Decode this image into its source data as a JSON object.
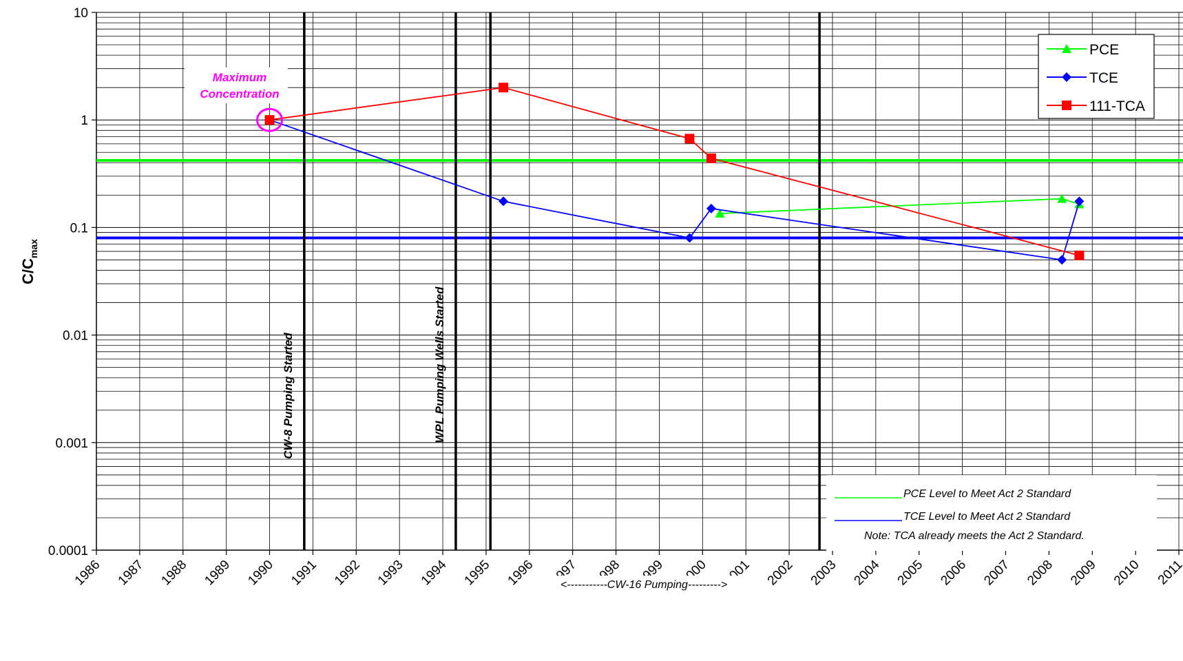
{
  "chart_data": {
    "type": "line",
    "ylabel_main": "C/C",
    "ylabel_sub": "max",
    "y_scale": "log",
    "ylim": [
      0.0001,
      10
    ],
    "xlim": [
      1986,
      2011
    ],
    "y_ticks": [
      "10",
      "1",
      "0.1",
      "0.01",
      "0.001",
      "0.0001"
    ],
    "x_ticks": [
      "1986",
      "1987",
      "1988",
      "1989",
      "1990",
      "1991",
      "1992",
      "1993",
      "1994",
      "1995",
      "1996",
      "1997",
      "1998",
      "1999",
      "2000",
      "2001",
      "2002",
      "2003",
      "2004",
      "2005",
      "2006",
      "2007",
      "2008",
      "2009",
      "2010",
      "2011"
    ],
    "grid": true,
    "legend_position": "top-right",
    "series": [
      {
        "name": "PCE",
        "color": "#00ff00",
        "marker": "triangle",
        "points": [
          [
            2000.4,
            0.135
          ],
          [
            2008.3,
            0.185
          ],
          [
            2008.7,
            0.165
          ]
        ]
      },
      {
        "name": "TCE",
        "color": "#0000ff",
        "marker": "diamond",
        "points": [
          [
            1990.0,
            1.0
          ],
          [
            1995.4,
            0.175
          ],
          [
            1999.7,
            0.08
          ],
          [
            2000.2,
            0.15
          ],
          [
            2008.3,
            0.05
          ],
          [
            2008.7,
            0.175
          ]
        ]
      },
      {
        "name": "111-TCA",
        "color": "#ff0000",
        "marker": "square",
        "points": [
          [
            1990.0,
            1.0
          ],
          [
            1995.4,
            2.0
          ],
          [
            1999.7,
            0.67
          ],
          [
            2000.2,
            0.44
          ],
          [
            2008.7,
            0.055
          ]
        ]
      }
    ],
    "reference_lines": [
      {
        "label": "PCE Level to Meet Act 2 Standard",
        "value": 0.42,
        "color": "#00ff00"
      },
      {
        "label": "TCE Level to Meet Act 2 Standard",
        "value": 0.08,
        "color": "#0000ff"
      }
    ],
    "note": "Note: TCA already meets the Act 2 Standard.",
    "event_lines": [
      {
        "x": 1990.8,
        "label": "CW-8 Pumping Started"
      },
      {
        "x": 1994.3,
        "label": "WPL Pumping Wells Started"
      },
      {
        "x": 1995.1,
        "label": ""
      },
      {
        "x": 2002.7,
        "label": ""
      }
    ],
    "annotations": {
      "max_line1": "Maximum",
      "max_line2": "Concentration",
      "max_point": [
        1990.0,
        1.0
      ],
      "cw16": "<-----------CW-16 Pumping--------->"
    }
  }
}
